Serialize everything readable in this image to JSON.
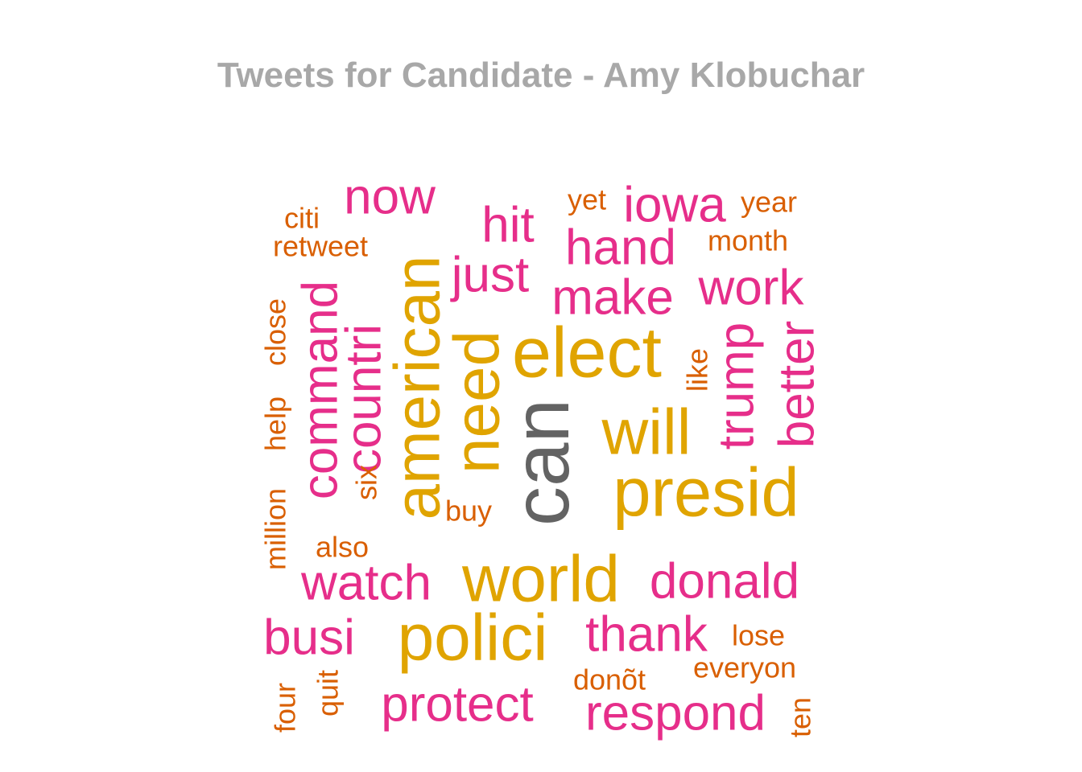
{
  "colors": {
    "gray": "#636363",
    "gold": "#e0a400",
    "pink": "#e62e8a",
    "orange": "#d95f02"
  },
  "chart_data": {
    "type": "wordcloud",
    "title": "Tweets for Candidate - Amy Klobuchar",
    "words": [
      {
        "text": "can",
        "color": "gray",
        "rotated": true
      },
      {
        "text": "elect",
        "color": "gold",
        "rotated": false
      },
      {
        "text": "presid",
        "color": "gold",
        "rotated": false
      },
      {
        "text": "polici",
        "color": "gold",
        "rotated": false
      },
      {
        "text": "world",
        "color": "gold",
        "rotated": false
      },
      {
        "text": "american",
        "color": "gold",
        "rotated": true
      },
      {
        "text": "need",
        "color": "gold",
        "rotated": true
      },
      {
        "text": "will",
        "color": "gold",
        "rotated": false
      },
      {
        "text": "now",
        "color": "pink",
        "rotated": false
      },
      {
        "text": "hit",
        "color": "pink",
        "rotated": false
      },
      {
        "text": "iowa",
        "color": "pink",
        "rotated": false
      },
      {
        "text": "hand",
        "color": "pink",
        "rotated": false
      },
      {
        "text": "just",
        "color": "pink",
        "rotated": false
      },
      {
        "text": "make",
        "color": "pink",
        "rotated": false
      },
      {
        "text": "work",
        "color": "pink",
        "rotated": false
      },
      {
        "text": "command",
        "color": "pink",
        "rotated": true
      },
      {
        "text": "countri",
        "color": "pink",
        "rotated": true
      },
      {
        "text": "trump",
        "color": "pink",
        "rotated": true
      },
      {
        "text": "better",
        "color": "pink",
        "rotated": true
      },
      {
        "text": "watch",
        "color": "pink",
        "rotated": false
      },
      {
        "text": "donald",
        "color": "pink",
        "rotated": false
      },
      {
        "text": "busi",
        "color": "pink",
        "rotated": false
      },
      {
        "text": "thank",
        "color": "pink",
        "rotated": false
      },
      {
        "text": "protect",
        "color": "pink",
        "rotated": false
      },
      {
        "text": "respond",
        "color": "pink",
        "rotated": false
      },
      {
        "text": "yet",
        "color": "orange",
        "rotated": false
      },
      {
        "text": "year",
        "color": "orange",
        "rotated": false
      },
      {
        "text": "citi",
        "color": "orange",
        "rotated": false
      },
      {
        "text": "retweet",
        "color": "orange",
        "rotated": false
      },
      {
        "text": "month",
        "color": "orange",
        "rotated": false
      },
      {
        "text": "close",
        "color": "orange",
        "rotated": true
      },
      {
        "text": "help",
        "color": "orange",
        "rotated": true
      },
      {
        "text": "million",
        "color": "orange",
        "rotated": true
      },
      {
        "text": "six",
        "color": "orange",
        "rotated": true
      },
      {
        "text": "like",
        "color": "orange",
        "rotated": true
      },
      {
        "text": "buy",
        "color": "orange",
        "rotated": false
      },
      {
        "text": "also",
        "color": "orange",
        "rotated": false
      },
      {
        "text": "lose",
        "color": "orange",
        "rotated": false
      },
      {
        "text": "everyon",
        "color": "orange",
        "rotated": false
      },
      {
        "text": "donõt",
        "color": "orange",
        "rotated": false
      },
      {
        "text": "four",
        "color": "orange",
        "rotated": true
      },
      {
        "text": "quit",
        "color": "orange",
        "rotated": true
      },
      {
        "text": "ten",
        "color": "orange",
        "rotated": true
      }
    ]
  }
}
